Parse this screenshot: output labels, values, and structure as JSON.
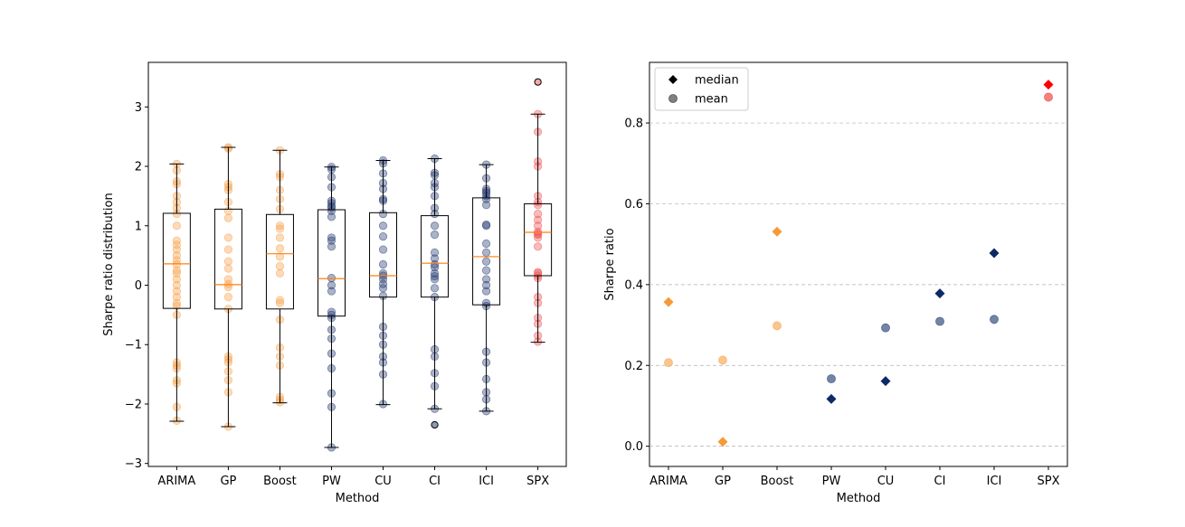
{
  "chart_data": [
    {
      "type": "box",
      "title": "",
      "xlabel": "Method",
      "ylabel": "Sharpe ratio distribution",
      "ylim": [
        -3.05,
        3.75
      ],
      "yticks": [
        -3,
        -2,
        -1,
        0,
        1,
        2,
        3
      ],
      "ytick_labels": [
        "−3",
        "−2",
        "−1",
        "0",
        "1",
        "2",
        "3"
      ],
      "categories": [
        "ARIMA",
        "GP",
        "Boost",
        "PW",
        "CU",
        "CI",
        "ICI",
        "SPX"
      ],
      "colors": {
        "orange": "#f7a04a",
        "navy": "#23386e",
        "red": "#f05050",
        "median": "#ff7f0e",
        "box": "#000000"
      },
      "category_colors": [
        "orange",
        "orange",
        "orange",
        "navy",
        "navy",
        "navy",
        "navy",
        "red"
      ],
      "boxes": [
        {
          "q1": -0.39,
          "median": 0.36,
          "q3": 1.21,
          "whisker_low": -2.29,
          "whisker_high": 2.04,
          "fliers": []
        },
        {
          "q1": -0.4,
          "median": 0.01,
          "q3": 1.28,
          "whisker_low": -2.38,
          "whisker_high": 2.32,
          "fliers": []
        },
        {
          "q1": -0.4,
          "median": 0.53,
          "q3": 1.19,
          "whisker_low": -1.98,
          "whisker_high": 2.27,
          "fliers": []
        },
        {
          "q1": -0.52,
          "median": 0.11,
          "q3": 1.27,
          "whisker_low": -2.73,
          "whisker_high": 1.99,
          "fliers": []
        },
        {
          "q1": -0.2,
          "median": 0.16,
          "q3": 1.22,
          "whisker_low": -2.01,
          "whisker_high": 2.1,
          "fliers": []
        },
        {
          "q1": -0.2,
          "median": 0.37,
          "q3": 1.17,
          "whisker_low": -2.08,
          "whisker_high": 2.13,
          "fliers": [
            -2.35
          ]
        },
        {
          "q1": -0.33,
          "median": 0.48,
          "q3": 1.47,
          "whisker_low": -2.12,
          "whisker_high": 2.03,
          "fliers": []
        },
        {
          "q1": 0.16,
          "median": 0.89,
          "q3": 1.37,
          "whisker_low": -0.96,
          "whisker_high": 2.88,
          "fliers": [
            3.42
          ]
        }
      ],
      "points": [
        [
          2.04,
          1.93,
          1.75,
          1.7,
          1.5,
          1.4,
          1.3,
          1.2,
          1.0,
          0.75,
          0.68,
          0.6,
          0.5,
          0.42,
          0.35,
          0.25,
          0.2,
          0.1,
          0.0,
          -0.1,
          -0.2,
          -0.3,
          -0.35,
          -0.5,
          -1.3,
          -1.35,
          -1.4,
          -1.6,
          -1.65,
          -2.05,
          -2.28
        ],
        [
          2.32,
          2.3,
          1.7,
          1.65,
          1.6,
          1.4,
          1.25,
          1.13,
          0.8,
          0.6,
          0.4,
          0.28,
          0.1,
          0.02,
          -0.03,
          -0.2,
          -0.4,
          -1.2,
          -1.25,
          -1.3,
          -1.45,
          -1.6,
          -1.8,
          -2.38
        ],
        [
          2.27,
          1.87,
          1.82,
          1.6,
          1.45,
          1.28,
          1.0,
          0.95,
          0.8,
          0.62,
          0.48,
          0.32,
          0.2,
          -0.25,
          -0.3,
          -0.58,
          -1.05,
          -1.2,
          -1.35,
          -1.88,
          -1.93,
          -1.97
        ],
        [
          1.99,
          1.95,
          1.82,
          1.65,
          1.42,
          1.38,
          1.33,
          1.3,
          1.25,
          1.15,
          0.8,
          0.75,
          0.65,
          0.12,
          0.0,
          -0.1,
          -0.45,
          -0.5,
          -0.55,
          -0.75,
          -0.9,
          -1.15,
          -1.4,
          -1.82,
          -2.05,
          -2.73
        ],
        [
          2.1,
          2.05,
          1.88,
          1.72,
          1.62,
          1.45,
          1.42,
          1.2,
          1.0,
          0.82,
          0.6,
          0.35,
          0.2,
          0.16,
          0.1,
          0.02,
          -0.05,
          -0.18,
          -0.7,
          -0.85,
          -1.0,
          -1.2,
          -1.3,
          -1.5,
          -2.0
        ],
        [
          2.13,
          1.89,
          1.85,
          1.72,
          1.65,
          1.5,
          1.3,
          1.2,
          1.0,
          0.85,
          0.55,
          0.45,
          0.35,
          0.3,
          0.2,
          0.15,
          0.1,
          -0.05,
          -0.2,
          -1.08,
          -1.2,
          -1.48,
          -1.7,
          -2.08
        ],
        [
          2.03,
          1.8,
          1.62,
          1.58,
          1.55,
          1.5,
          1.45,
          1.35,
          1.02,
          1.0,
          0.7,
          0.55,
          0.4,
          0.25,
          0.1,
          0.0,
          -0.1,
          -0.3,
          -0.35,
          -1.12,
          -1.3,
          -1.58,
          -1.8,
          -1.92,
          -2.12
        ],
        [
          2.88,
          2.58,
          2.08,
          2.0,
          1.5,
          1.4,
          1.35,
          1.2,
          1.1,
          1.0,
          0.9,
          0.87,
          0.85,
          0.8,
          0.65,
          0.22,
          0.2,
          0.16,
          0.12,
          -0.2,
          -0.3,
          -0.55,
          -0.65,
          -0.85,
          -0.95
        ]
      ]
    },
    {
      "type": "scatter",
      "title": "",
      "xlabel": "Method",
      "ylabel": "Sharpe ratio",
      "ylim": [
        -0.05,
        0.95
      ],
      "yticks": [
        0.0,
        0.2,
        0.4,
        0.6,
        0.8
      ],
      "ytick_labels": [
        "0.0",
        "0.2",
        "0.4",
        "0.6",
        "0.8"
      ],
      "grid": true,
      "categories": [
        "ARIMA",
        "GP",
        "Boost",
        "PW",
        "CU",
        "CI",
        "ICI",
        "SPX"
      ],
      "median_colors": [
        "#f59a38",
        "#f59a38",
        "#f59a38",
        "#0d2a66",
        "#0d2a66",
        "#0d2a66",
        "#0d2a66",
        "#ff0000"
      ],
      "mean_colors": [
        "#f9b672",
        "#f9b672",
        "#f9b672",
        "#4f6690",
        "#4f6690",
        "#4f6690",
        "#4f6690",
        "#f46060"
      ],
      "median": [
        0.357,
        0.011,
        0.531,
        0.117,
        0.161,
        0.378,
        0.478,
        0.895
      ],
      "mean": [
        0.207,
        0.213,
        0.298,
        0.167,
        0.293,
        0.309,
        0.314,
        0.864
      ],
      "legend": {
        "position": "top-left",
        "items": [
          {
            "label": "median",
            "marker": "diamond",
            "color": "#000000"
          },
          {
            "label": "mean",
            "marker": "circle",
            "color": "#7f7f7f"
          }
        ]
      }
    }
  ]
}
